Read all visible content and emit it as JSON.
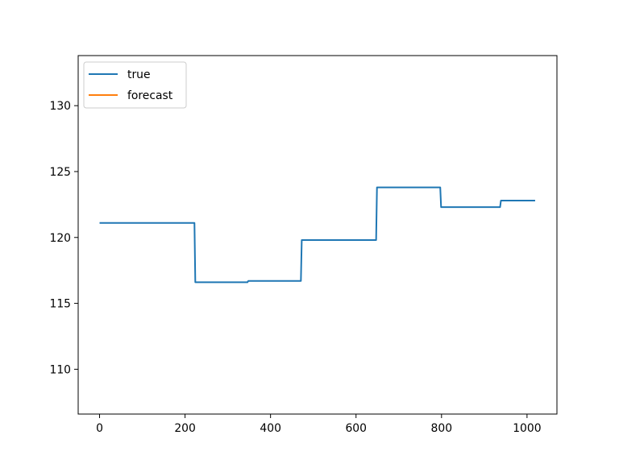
{
  "chart_data": {
    "type": "line",
    "title": "",
    "xlabel": "",
    "ylabel": "",
    "xlim": [
      -50,
      1070
    ],
    "ylim": [
      106.6,
      133.8
    ],
    "x_ticks": [
      0,
      200,
      400,
      600,
      800,
      1000
    ],
    "y_ticks": [
      110,
      115,
      120,
      125,
      130
    ],
    "grid": false,
    "legend": {
      "placement": "top-left",
      "entries": [
        {
          "label": "true",
          "color": "#1f77b4"
        },
        {
          "label": "forecast",
          "color": "#ff7f0e"
        }
      ]
    },
    "series": [
      {
        "name": "true",
        "color": "#1f77b4",
        "points": [
          [
            0,
            121.1
          ],
          [
            222,
            121.1
          ],
          [
            224,
            116.6
          ],
          [
            346,
            116.6
          ],
          [
            348,
            116.7
          ],
          [
            471,
            116.7
          ],
          [
            473,
            119.8
          ],
          [
            647,
            119.8
          ],
          [
            649,
            123.8
          ],
          [
            797,
            123.8
          ],
          [
            799,
            122.3
          ],
          [
            937,
            122.3
          ],
          [
            939,
            122.8
          ],
          [
            1019,
            122.8
          ]
        ]
      },
      {
        "name": "forecast",
        "color": "#ff7f0e",
        "points": []
      }
    ]
  }
}
